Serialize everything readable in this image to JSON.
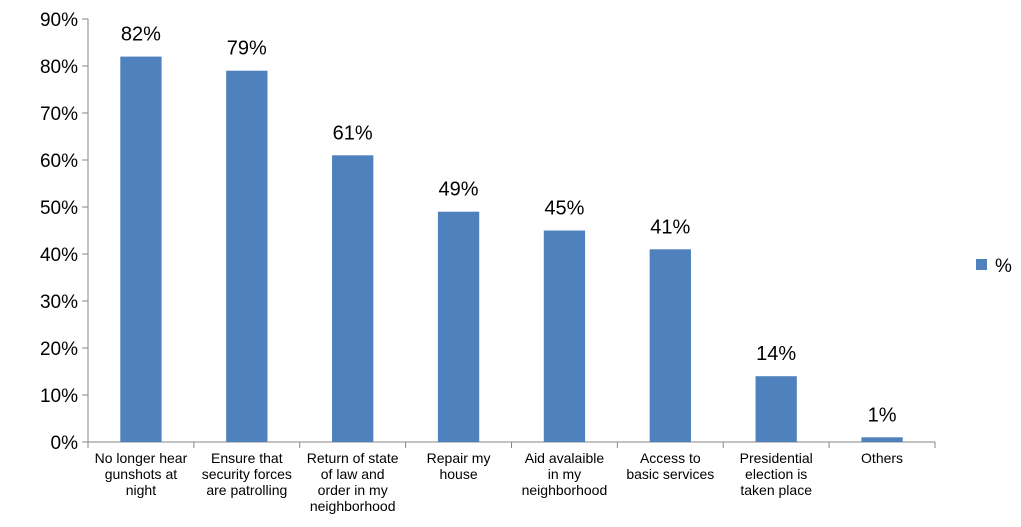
{
  "chart_data": {
    "type": "bar",
    "categories": [
      [
        "No longer hear",
        "gunshots at",
        "night"
      ],
      [
        "Ensure that",
        "security forces",
        "are patrolling"
      ],
      [
        "Return of state",
        "of law and",
        "order in my",
        "neighborhood"
      ],
      [
        "Repair my",
        "house"
      ],
      [
        "Aid avalaible",
        "in my",
        "neighborhood"
      ],
      [
        "Access to",
        "basic services"
      ],
      [
        "Presidential",
        "election is",
        "taken place"
      ],
      [
        "Others"
      ]
    ],
    "series": [
      {
        "name": "%",
        "values": [
          82,
          79,
          61,
          49,
          45,
          41,
          14,
          1
        ]
      }
    ],
    "data_labels": [
      "82%",
      "79%",
      "61%",
      "49%",
      "45%",
      "41%",
      "14%",
      "1%"
    ],
    "yticks": [
      {
        "value": 0,
        "label": "0%"
      },
      {
        "value": 10,
        "label": "10%"
      },
      {
        "value": 20,
        "label": "20%"
      },
      {
        "value": 30,
        "label": "30%"
      },
      {
        "value": 40,
        "label": "40%"
      },
      {
        "value": 50,
        "label": "50%"
      },
      {
        "value": 60,
        "label": "60%"
      },
      {
        "value": 70,
        "label": "70%"
      },
      {
        "value": 80,
        "label": "80%"
      },
      {
        "value": 90,
        "label": "90%"
      }
    ],
    "ylim": [
      0,
      90
    ],
    "title": "",
    "xlabel": "",
    "ylabel": "",
    "grid": false,
    "legend_position": "right",
    "bar_color": "#4F81BD",
    "axis_color": "#868686"
  }
}
